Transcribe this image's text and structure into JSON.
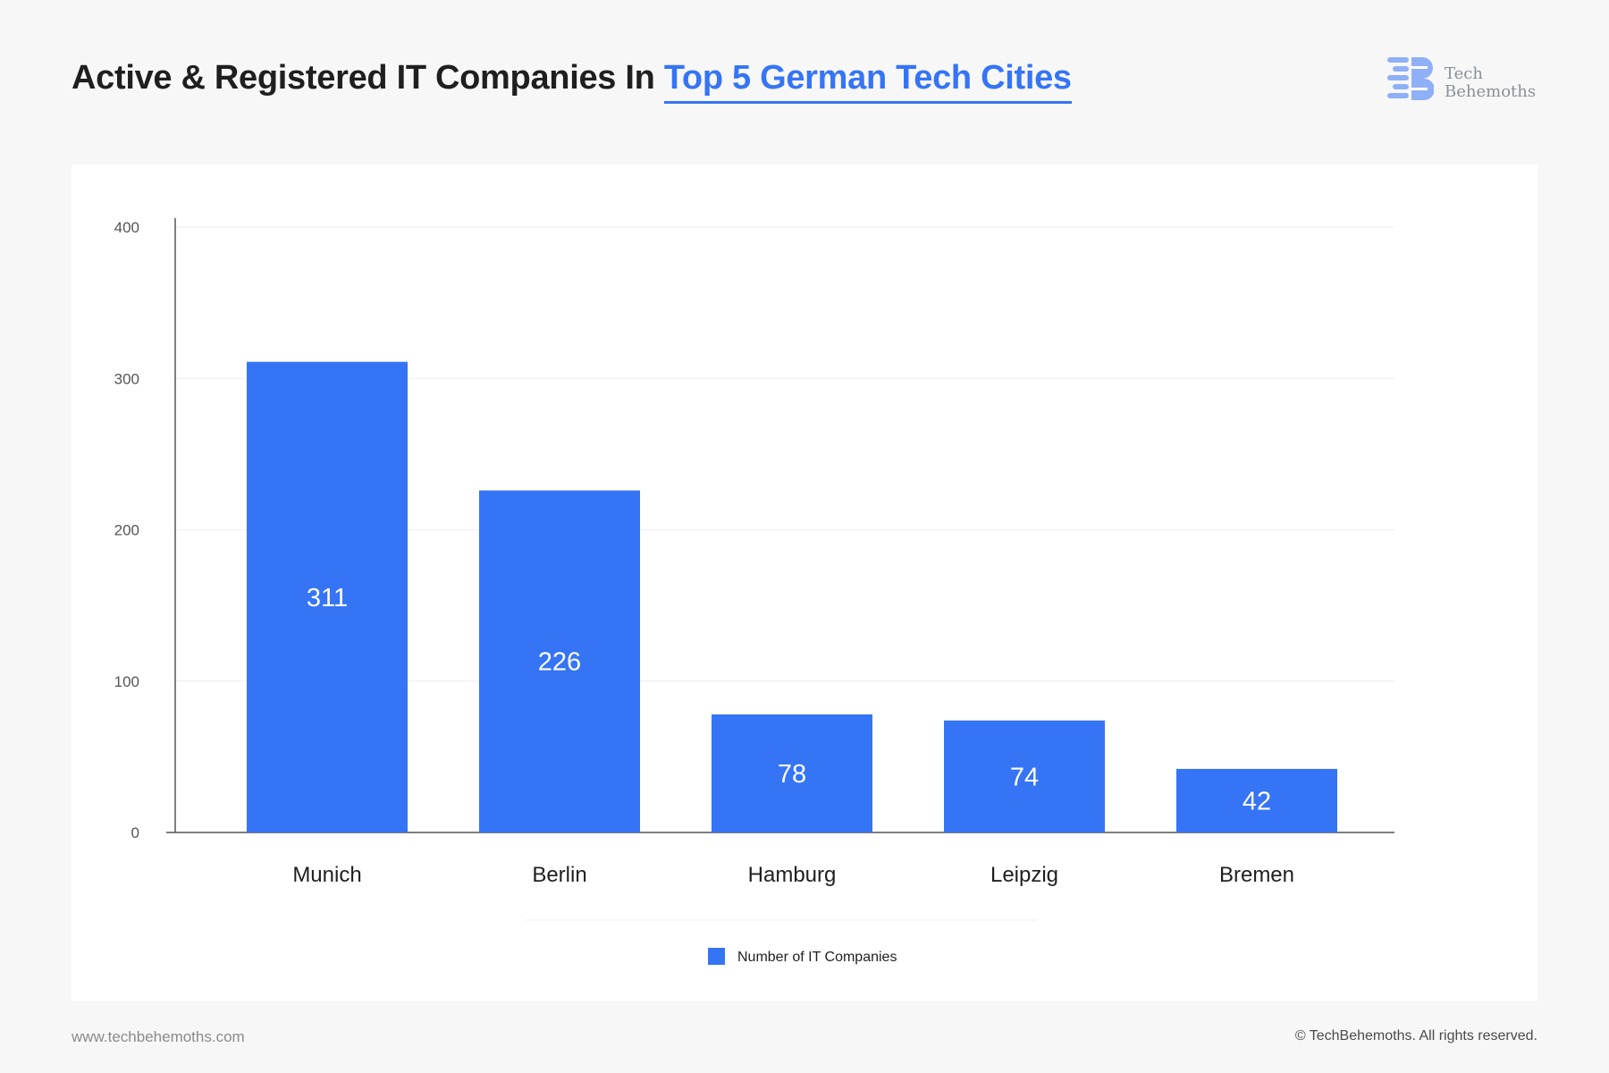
{
  "header": {
    "title_prefix": "Active & Registered IT Companies In ",
    "title_highlight": "Top 5 German Tech Cities"
  },
  "logo": {
    "icon": "techbehemoths-logo-icon",
    "line1": "Tech",
    "line2": "Behemoths"
  },
  "footer": {
    "website": "www.techbehemoths.com",
    "copyright": "© TechBehemoths. All rights reserved."
  },
  "colors": {
    "accent": "#3574f5",
    "bar": "#3574f5",
    "axis": "#555555",
    "grid": "#eeeeee"
  },
  "chart_data": {
    "type": "bar",
    "title": "",
    "xlabel": "",
    "ylabel": "",
    "categories": [
      "Munich",
      "Berlin",
      "Hamburg",
      "Leipzig",
      "Bremen"
    ],
    "series": [
      {
        "name": "Number of IT Companies",
        "values": [
          311,
          226,
          78,
          74,
          42
        ]
      }
    ],
    "data_labels": [
      "311",
      "226",
      "78",
      "74",
      "42"
    ],
    "ylim": [
      0,
      400
    ],
    "yticks": [
      0,
      100,
      200,
      300,
      400
    ],
    "grid": true,
    "legend_position": "bottom-center"
  }
}
